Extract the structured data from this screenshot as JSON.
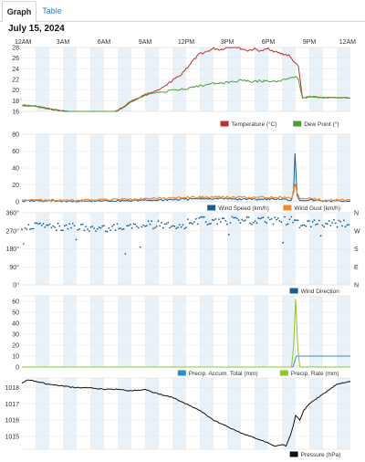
{
  "tabs": [
    {
      "label": "Graph",
      "active": true
    },
    {
      "label": "Table",
      "active": false
    }
  ],
  "date": "July 15, 2024",
  "time_labels": [
    "12AM",
    "3AM",
    "6AM",
    "9AM",
    "12PM",
    "3PM",
    "6PM",
    "9PM",
    "12AM"
  ],
  "colors": {
    "band": "#eaf2f9",
    "temperature": "#c0302e",
    "dew_point": "#4e9e38",
    "wind_speed": "#1d5b96",
    "wind_gust": "#f08a2e",
    "wind_direction": "#1d5b96",
    "precip_total": "#2b8fc6",
    "precip_rate": "#8bc82a",
    "pressure": "#111111"
  },
  "chart_data": [
    {
      "type": "line",
      "name": "temperature-chart",
      "y_ticks": [
        "28",
        "26",
        "24",
        "22",
        "20",
        "18",
        "16"
      ],
      "ylim": [
        16,
        28
      ],
      "legend": [
        {
          "label": "Temperature (°C)",
          "color": "#c0302e"
        },
        {
          "label": "Dew Point (°)",
          "color": "#4e9e38"
        }
      ],
      "series": [
        {
          "name": "Temperature (°C)",
          "x_hours": [
            0,
            1,
            2,
            3,
            4,
            5,
            6,
            6.5,
            7,
            7.5,
            8,
            8.5,
            9,
            9.5,
            10,
            10.5,
            11,
            11.5,
            12,
            12.5,
            13,
            13.5,
            14,
            14.5,
            15,
            15.5,
            16,
            16.5,
            17,
            17.5,
            18,
            18.5,
            19,
            19.5,
            20,
            20.2,
            20.5,
            21,
            22,
            23,
            24
          ],
          "values": [
            17.2,
            17,
            16.5,
            16.1,
            15.8,
            15.6,
            15.5,
            15.8,
            16.2,
            17,
            18,
            18.5,
            19.2,
            19.6,
            20,
            20.8,
            21.8,
            22.6,
            24,
            25.5,
            26.8,
            27.2,
            27.8,
            27.6,
            28,
            28.2,
            27.8,
            27.4,
            27.7,
            27.3,
            27.8,
            27.2,
            26.8,
            26.5,
            25,
            24.5,
            18.5,
            18.8,
            18.6,
            18.6,
            18.5
          ]
        },
        {
          "name": "Dew Point (°)",
          "x_hours": [
            0,
            1,
            2,
            3,
            4,
            5,
            6,
            6.5,
            7,
            7.5,
            8,
            8.5,
            9,
            9.5,
            10,
            10.5,
            11,
            11.5,
            12,
            12.5,
            13,
            13.5,
            14,
            14.5,
            15,
            15.5,
            16,
            16.5,
            17,
            17.5,
            18,
            18.5,
            19,
            19.5,
            20,
            20.2,
            20.5,
            21,
            22,
            23,
            24
          ],
          "values": [
            17.1,
            16.9,
            16.4,
            16,
            15.7,
            15.5,
            15.4,
            15.7,
            16.1,
            16.8,
            17.8,
            18.4,
            19,
            19.4,
            19.6,
            19.7,
            19.9,
            20.1,
            20.3,
            20.6,
            20.8,
            21,
            21.2,
            21.3,
            21.4,
            21.6,
            21.8,
            21.7,
            21.6,
            21.7,
            21.8,
            21.6,
            21.9,
            22.1,
            22.6,
            22,
            18.5,
            18.7,
            18.6,
            18.6,
            18.5
          ]
        }
      ]
    },
    {
      "type": "line",
      "name": "wind-speed-chart",
      "y_ticks": [
        "80",
        "60",
        "40",
        "20",
        "0"
      ],
      "ylim": [
        0,
        80
      ],
      "legend": [
        {
          "label": "Wind Speed (km/h)",
          "color": "#1d5b96"
        },
        {
          "label": "Wind Gust (km/h)",
          "color": "#f08a2e"
        }
      ],
      "series": [
        {
          "name": "Wind Speed (km/h)",
          "x_hours": [
            0,
            2,
            4,
            6,
            8,
            10,
            12,
            14,
            16,
            18,
            19,
            19.7,
            19.85,
            19.95,
            20.1,
            20.3,
            21,
            22,
            24
          ],
          "values": [
            1,
            1,
            0.5,
            1,
            1.5,
            2,
            3,
            4,
            3,
            3.5,
            3,
            2,
            15,
            58,
            8,
            2,
            2,
            1,
            1
          ]
        },
        {
          "name": "Wind Gust (km/h)",
          "x_hours": [
            0,
            2,
            4,
            6,
            8,
            10,
            12,
            14,
            16,
            18,
            19,
            19.7,
            19.85,
            19.95,
            20.1,
            20.3,
            21,
            22,
            24
          ],
          "values": [
            2,
            2,
            1.5,
            2.5,
            3,
            4,
            5,
            6,
            5,
            5.5,
            5,
            4,
            12,
            22,
            10,
            4,
            4,
            2,
            2
          ]
        }
      ]
    },
    {
      "type": "scatter",
      "name": "wind-direction-chart",
      "y_ticks": [
        "360°",
        "270°",
        "180°",
        "90°",
        "0°"
      ],
      "compass": [
        "N",
        "W",
        "S",
        "E",
        "N"
      ],
      "ylim": [
        0,
        360
      ],
      "legend": [
        {
          "label": "Wind Direction",
          "color": "#1d5b96"
        }
      ]
    },
    {
      "type": "line",
      "name": "precipitation-chart",
      "y_ticks": [
        "60",
        "50",
        "40",
        "30",
        "20",
        "10",
        "0"
      ],
      "ylim": [
        0,
        65
      ],
      "legend": [
        {
          "label": "Precip. Accum. Total (mm)",
          "color": "#2b8fc6"
        },
        {
          "label": "Precip. Rate (mm)",
          "color": "#8bc82a"
        }
      ],
      "series": [
        {
          "name": "Precip. Accum. Total (mm)",
          "x_hours": [
            0,
            19.8,
            20.05,
            24
          ],
          "values": [
            0,
            0,
            10,
            10
          ]
        },
        {
          "name": "Precip. Rate (mm)",
          "x_hours": [
            0,
            19.7,
            19.85,
            20,
            20.15,
            20.3,
            24
          ],
          "values": [
            0,
            0,
            20,
            62,
            20,
            0,
            0
          ]
        }
      ]
    },
    {
      "type": "line",
      "name": "pressure-chart",
      "y_ticks": [
        "1018",
        "1017",
        "1016",
        "1015"
      ],
      "ylim": [
        1014.2,
        1018.6
      ],
      "legend": [
        {
          "label": "Pressure (hPa)",
          "color": "#111111"
        }
      ],
      "series": [
        {
          "name": "Pressure (hPa)",
          "x_hours": [
            0,
            0.5,
            1,
            2,
            3,
            4,
            5,
            6,
            7,
            8,
            9,
            10,
            11,
            12,
            13,
            14,
            15,
            16,
            17,
            18,
            18.5,
            19,
            19.3,
            19.6,
            19.8,
            20,
            20.3,
            20.6,
            21,
            22,
            23,
            24
          ],
          "values": [
            1018.3,
            1018.5,
            1018.4,
            1018.2,
            1018.1,
            1018.0,
            1018.0,
            1017.9,
            1017.9,
            1017.8,
            1017.9,
            1017.6,
            1017.4,
            1017.0,
            1016.6,
            1016.0,
            1015.6,
            1015.2,
            1014.9,
            1014.6,
            1014.4,
            1014.5,
            1014.4,
            1015.0,
            1015.6,
            1016.3,
            1016.0,
            1016.6,
            1017.0,
            1017.6,
            1018.2,
            1018.4
          ]
        }
      ]
    }
  ]
}
